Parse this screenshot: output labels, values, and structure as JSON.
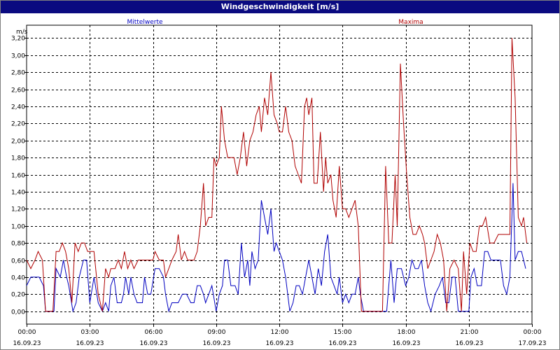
{
  "window": {
    "title": "Windgeschwindigkeit [m/s]"
  },
  "chart_data": {
    "type": "line",
    "title": "Windgeschwindigkeit [m/s]",
    "ylabel": "m/s",
    "xlabel": "",
    "ylim": [
      -0.15,
      3.35
    ],
    "xlim": [
      0,
      24
    ],
    "grid": true,
    "yticks": [
      "3,20",
      "3,00",
      "2,80",
      "2,60",
      "2,40",
      "2,20",
      "2,00",
      "1,80",
      "1,60",
      "1,40",
      "1,20",
      "1,00",
      "0,80",
      "0,60",
      "0,40",
      "0,20",
      "0,00"
    ],
    "ytick_values": [
      3.2,
      3.0,
      2.8,
      2.6,
      2.4,
      2.2,
      2.0,
      1.8,
      1.6,
      1.4,
      1.2,
      1.0,
      0.8,
      0.6,
      0.4,
      0.2,
      0.0
    ],
    "xticks": [
      {
        "x": 0,
        "time": "00:00",
        "date": "16.09.23"
      },
      {
        "x": 3,
        "time": "03:00",
        "date": "16.09.23"
      },
      {
        "x": 6,
        "time": "06:00",
        "date": "16.09.23"
      },
      {
        "x": 9,
        "time": "09:00",
        "date": "16.09.23"
      },
      {
        "x": 12,
        "time": "12:00",
        "date": "16.09.23"
      },
      {
        "x": 15,
        "time": "15:00",
        "date": "16.09.23"
      },
      {
        "x": 18,
        "time": "18:00",
        "date": "16.09.23"
      },
      {
        "x": 21,
        "time": "21:00",
        "date": "16.09.23"
      },
      {
        "x": 24,
        "time": "00:00",
        "date": "17.09.23"
      }
    ],
    "series": [
      {
        "name": "Mittelwerte",
        "color": "#0000c0",
        "points": [
          [
            0.0,
            0.3
          ],
          [
            0.2,
            0.4
          ],
          [
            0.4,
            0.4
          ],
          [
            0.6,
            0.4
          ],
          [
            0.8,
            0.3
          ],
          [
            0.9,
            0.0
          ],
          [
            1.3,
            0.0
          ],
          [
            1.4,
            0.5
          ],
          [
            1.6,
            0.4
          ],
          [
            1.75,
            0.6
          ],
          [
            1.9,
            0.4
          ],
          [
            2.0,
            0.3
          ],
          [
            2.2,
            0.0
          ],
          [
            2.35,
            0.1
          ],
          [
            2.5,
            0.4
          ],
          [
            2.7,
            0.6
          ],
          [
            2.85,
            0.6
          ],
          [
            3.0,
            0.1
          ],
          [
            3.2,
            0.4
          ],
          [
            3.4,
            0.1
          ],
          [
            3.6,
            0.0
          ],
          [
            3.75,
            0.1
          ],
          [
            3.9,
            0.0
          ],
          [
            4.0,
            0.3
          ],
          [
            4.15,
            0.4
          ],
          [
            4.3,
            0.1
          ],
          [
            4.5,
            0.1
          ],
          [
            4.6,
            0.2
          ],
          [
            4.7,
            0.4
          ],
          [
            4.85,
            0.2
          ],
          [
            4.95,
            0.4
          ],
          [
            5.1,
            0.2
          ],
          [
            5.25,
            0.1
          ],
          [
            5.5,
            0.1
          ],
          [
            5.6,
            0.4
          ],
          [
            5.75,
            0.2
          ],
          [
            5.9,
            0.2
          ],
          [
            6.1,
            0.5
          ],
          [
            6.3,
            0.5
          ],
          [
            6.5,
            0.4
          ],
          [
            6.6,
            0.2
          ],
          [
            6.75,
            0.0
          ],
          [
            6.9,
            0.1
          ],
          [
            7.2,
            0.1
          ],
          [
            7.4,
            0.2
          ],
          [
            7.6,
            0.2
          ],
          [
            7.8,
            0.1
          ],
          [
            7.95,
            0.1
          ],
          [
            8.1,
            0.3
          ],
          [
            8.25,
            0.3
          ],
          [
            8.4,
            0.2
          ],
          [
            8.5,
            0.1
          ],
          [
            8.65,
            0.2
          ],
          [
            8.8,
            0.3
          ],
          [
            9.0,
            0.0
          ],
          [
            9.15,
            0.2
          ],
          [
            9.3,
            0.3
          ],
          [
            9.4,
            0.6
          ],
          [
            9.55,
            0.6
          ],
          [
            9.7,
            0.3
          ],
          [
            9.9,
            0.3
          ],
          [
            10.05,
            0.2
          ],
          [
            10.2,
            0.8
          ],
          [
            10.35,
            0.4
          ],
          [
            10.5,
            0.6
          ],
          [
            10.6,
            0.3
          ],
          [
            10.7,
            0.7
          ],
          [
            10.85,
            0.5
          ],
          [
            11.0,
            0.6
          ],
          [
            11.15,
            1.3
          ],
          [
            11.3,
            1.1
          ],
          [
            11.45,
            0.9
          ],
          [
            11.6,
            1.2
          ],
          [
            11.75,
            0.7
          ],
          [
            11.85,
            0.8
          ],
          [
            12.0,
            0.7
          ],
          [
            12.15,
            0.6
          ],
          [
            12.3,
            0.4
          ],
          [
            12.5,
            0.0
          ],
          [
            12.65,
            0.1
          ],
          [
            12.8,
            0.3
          ],
          [
            12.95,
            0.3
          ],
          [
            13.1,
            0.2
          ],
          [
            13.25,
            0.4
          ],
          [
            13.4,
            0.6
          ],
          [
            13.55,
            0.4
          ],
          [
            13.7,
            0.2
          ],
          [
            13.85,
            0.5
          ],
          [
            14.0,
            0.3
          ],
          [
            14.15,
            0.7
          ],
          [
            14.3,
            0.9
          ],
          [
            14.45,
            0.4
          ],
          [
            14.6,
            0.3
          ],
          [
            14.75,
            0.2
          ],
          [
            14.85,
            0.4
          ],
          [
            15.0,
            0.1
          ],
          [
            15.15,
            0.2
          ],
          [
            15.3,
            0.1
          ],
          [
            15.45,
            0.2
          ],
          [
            15.6,
            0.2
          ],
          [
            15.75,
            0.4
          ],
          [
            15.85,
            0.2
          ],
          [
            16.0,
            0.0
          ],
          [
            17.1,
            0.0
          ],
          [
            17.3,
            0.6
          ],
          [
            17.45,
            0.1
          ],
          [
            17.6,
            0.5
          ],
          [
            17.8,
            0.5
          ],
          [
            18.0,
            0.3
          ],
          [
            18.15,
            0.4
          ],
          [
            18.3,
            0.6
          ],
          [
            18.45,
            0.5
          ],
          [
            18.6,
            0.5
          ],
          [
            18.75,
            0.6
          ],
          [
            18.9,
            0.3
          ],
          [
            19.05,
            0.1
          ],
          [
            19.2,
            0.0
          ],
          [
            19.4,
            0.2
          ],
          [
            19.6,
            0.3
          ],
          [
            19.75,
            0.4
          ],
          [
            19.9,
            0.1
          ],
          [
            20.05,
            0.1
          ],
          [
            20.2,
            0.4
          ],
          [
            20.35,
            0.4
          ],
          [
            20.5,
            0.0
          ],
          [
            21.0,
            0.0
          ],
          [
            21.1,
            0.4
          ],
          [
            21.25,
            0.5
          ],
          [
            21.4,
            0.3
          ],
          [
            21.6,
            0.3
          ],
          [
            21.75,
            0.7
          ],
          [
            21.9,
            0.7
          ],
          [
            22.05,
            0.6
          ],
          [
            22.3,
            0.6
          ],
          [
            22.5,
            0.6
          ],
          [
            22.65,
            0.3
          ],
          [
            22.8,
            0.2
          ],
          [
            22.95,
            0.4
          ],
          [
            23.1,
            1.5
          ],
          [
            23.2,
            0.6
          ],
          [
            23.35,
            0.7
          ],
          [
            23.5,
            0.7
          ],
          [
            23.7,
            0.5
          ]
        ]
      },
      {
        "name": "Maxima",
        "color": "#b00000",
        "points": [
          [
            0.0,
            0.6
          ],
          [
            0.2,
            0.5
          ],
          [
            0.4,
            0.6
          ],
          [
            0.55,
            0.7
          ],
          [
            0.75,
            0.6
          ],
          [
            0.9,
            0.0
          ],
          [
            1.25,
            0.0
          ],
          [
            1.4,
            0.7
          ],
          [
            1.55,
            0.7
          ],
          [
            1.7,
            0.8
          ],
          [
            1.85,
            0.7
          ],
          [
            2.0,
            0.5
          ],
          [
            2.15,
            0.1
          ],
          [
            2.3,
            0.8
          ],
          [
            2.45,
            0.7
          ],
          [
            2.6,
            0.8
          ],
          [
            2.75,
            0.8
          ],
          [
            2.9,
            0.7
          ],
          [
            3.0,
            0.7
          ],
          [
            3.2,
            0.7
          ],
          [
            3.4,
            0.2
          ],
          [
            3.6,
            0.0
          ],
          [
            3.75,
            0.5
          ],
          [
            3.9,
            0.4
          ],
          [
            4.0,
            0.5
          ],
          [
            4.2,
            0.5
          ],
          [
            4.35,
            0.6
          ],
          [
            4.5,
            0.5
          ],
          [
            4.65,
            0.7
          ],
          [
            4.8,
            0.5
          ],
          [
            4.95,
            0.6
          ],
          [
            5.1,
            0.5
          ],
          [
            5.3,
            0.6
          ],
          [
            5.5,
            0.6
          ],
          [
            5.7,
            0.6
          ],
          [
            6.0,
            0.6
          ],
          [
            6.1,
            0.7
          ],
          [
            6.3,
            0.6
          ],
          [
            6.5,
            0.6
          ],
          [
            6.6,
            0.4
          ],
          [
            6.75,
            0.5
          ],
          [
            6.9,
            0.6
          ],
          [
            7.1,
            0.7
          ],
          [
            7.2,
            0.9
          ],
          [
            7.35,
            0.6
          ],
          [
            7.5,
            0.7
          ],
          [
            7.65,
            0.6
          ],
          [
            7.8,
            0.6
          ],
          [
            7.95,
            0.6
          ],
          [
            8.1,
            0.7
          ],
          [
            8.25,
            1.0
          ],
          [
            8.4,
            1.5
          ],
          [
            8.5,
            1.0
          ],
          [
            8.65,
            1.1
          ],
          [
            8.8,
            1.1
          ],
          [
            8.9,
            1.8
          ],
          [
            9.0,
            1.7
          ],
          [
            9.15,
            1.8
          ],
          [
            9.25,
            2.4
          ],
          [
            9.4,
            2.0
          ],
          [
            9.55,
            1.8
          ],
          [
            9.7,
            1.8
          ],
          [
            9.85,
            1.8
          ],
          [
            10.0,
            1.6
          ],
          [
            10.15,
            1.8
          ],
          [
            10.3,
            2.1
          ],
          [
            10.45,
            1.7
          ],
          [
            10.6,
            2.0
          ],
          [
            10.75,
            2.1
          ],
          [
            10.9,
            2.3
          ],
          [
            11.05,
            2.4
          ],
          [
            11.15,
            2.1
          ],
          [
            11.3,
            2.5
          ],
          [
            11.45,
            2.3
          ],
          [
            11.6,
            2.8
          ],
          [
            11.75,
            2.3
          ],
          [
            11.9,
            2.2
          ],
          [
            12.0,
            2.1
          ],
          [
            12.15,
            2.1
          ],
          [
            12.3,
            2.4
          ],
          [
            12.45,
            2.1
          ],
          [
            12.6,
            2.0
          ],
          [
            12.75,
            1.7
          ],
          [
            12.9,
            1.6
          ],
          [
            13.05,
            1.5
          ],
          [
            13.2,
            2.4
          ],
          [
            13.3,
            2.5
          ],
          [
            13.4,
            2.3
          ],
          [
            13.55,
            2.5
          ],
          [
            13.65,
            1.5
          ],
          [
            13.8,
            1.5
          ],
          [
            13.95,
            2.1
          ],
          [
            14.1,
            1.4
          ],
          [
            14.2,
            1.8
          ],
          [
            14.3,
            1.5
          ],
          [
            14.45,
            1.6
          ],
          [
            14.55,
            1.3
          ],
          [
            14.7,
            1.1
          ],
          [
            14.85,
            1.7
          ],
          [
            15.0,
            1.2
          ],
          [
            15.15,
            1.2
          ],
          [
            15.3,
            1.1
          ],
          [
            15.45,
            1.2
          ],
          [
            15.6,
            1.3
          ],
          [
            15.75,
            1.0
          ],
          [
            15.9,
            0.0
          ],
          [
            16.9,
            0.0
          ],
          [
            17.05,
            1.7
          ],
          [
            17.2,
            0.8
          ],
          [
            17.35,
            0.8
          ],
          [
            17.5,
            1.6
          ],
          [
            17.6,
            1.0
          ],
          [
            17.75,
            2.9
          ],
          [
            17.9,
            2.2
          ],
          [
            18.05,
            1.6
          ],
          [
            18.2,
            1.1
          ],
          [
            18.35,
            0.9
          ],
          [
            18.5,
            0.9
          ],
          [
            18.65,
            1.0
          ],
          [
            18.8,
            0.9
          ],
          [
            18.9,
            0.8
          ],
          [
            19.05,
            0.5
          ],
          [
            19.2,
            0.6
          ],
          [
            19.35,
            0.7
          ],
          [
            19.5,
            0.9
          ],
          [
            19.65,
            0.8
          ],
          [
            19.8,
            0.6
          ],
          [
            19.95,
            0.0
          ],
          [
            20.1,
            0.5
          ],
          [
            20.3,
            0.6
          ],
          [
            20.5,
            0.5
          ],
          [
            20.65,
            0.0
          ],
          [
            20.75,
            0.7
          ],
          [
            20.9,
            0.2
          ],
          [
            21.05,
            0.8
          ],
          [
            21.2,
            0.7
          ],
          [
            21.35,
            0.7
          ],
          [
            21.5,
            1.0
          ],
          [
            21.65,
            1.0
          ],
          [
            21.8,
            1.1
          ],
          [
            22.0,
            0.8
          ],
          [
            22.2,
            0.8
          ],
          [
            22.4,
            0.9
          ],
          [
            22.6,
            0.9
          ],
          [
            22.8,
            0.9
          ],
          [
            22.95,
            0.9
          ],
          [
            23.05,
            3.2
          ],
          [
            23.2,
            2.5
          ],
          [
            23.35,
            1.1
          ],
          [
            23.5,
            1.0
          ],
          [
            23.6,
            1.1
          ],
          [
            23.75,
            0.8
          ]
        ]
      }
    ]
  }
}
